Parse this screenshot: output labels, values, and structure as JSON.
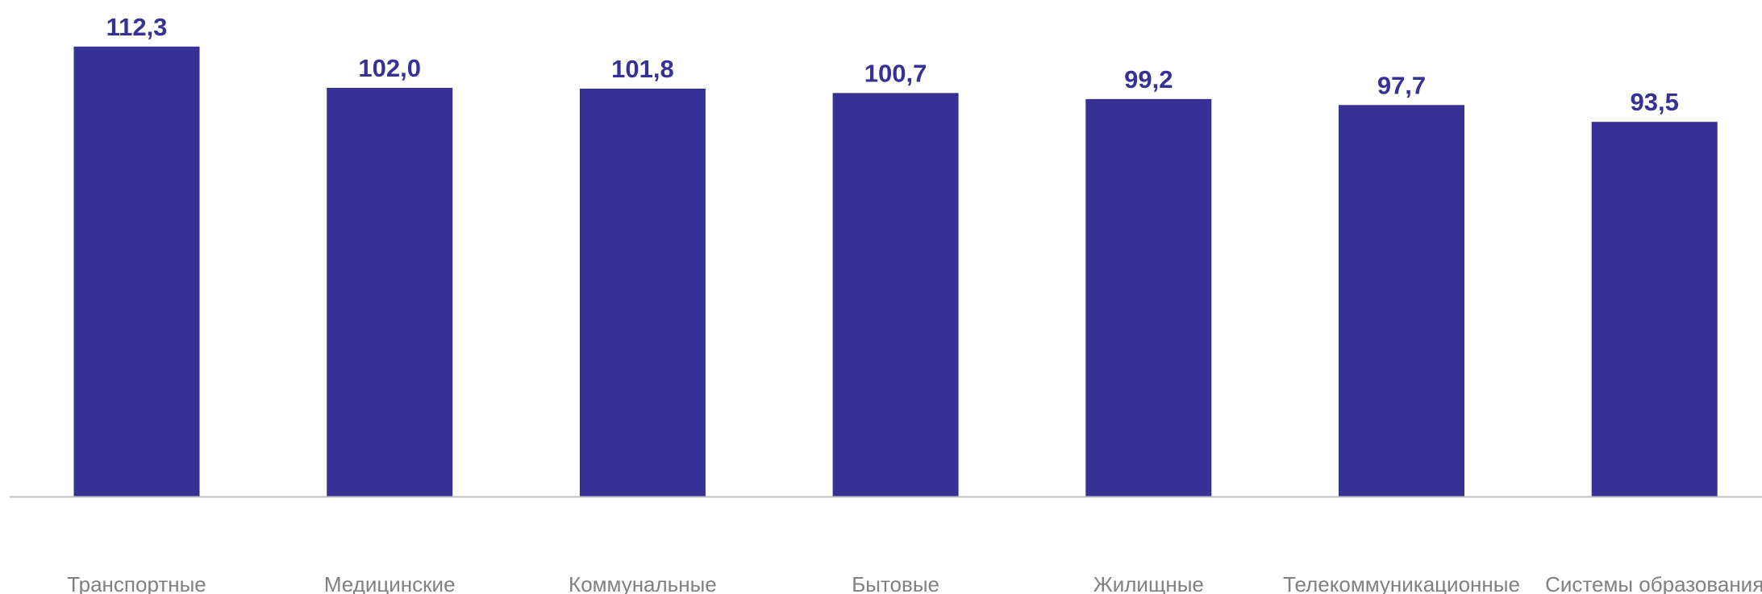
{
  "chart_data": {
    "type": "bar",
    "categories": [
      "Транспортные",
      "Медицинские",
      "Коммунальные",
      "Бытовые",
      "Жилищные",
      "Телекоммуникационные",
      "Системы образования"
    ],
    "values": [
      112.3,
      102.0,
      101.8,
      100.7,
      99.2,
      97.7,
      93.5
    ],
    "value_labels": [
      "112,3",
      "102,0",
      "101,8",
      "100,7",
      "99,2",
      "97,7",
      "93,5"
    ],
    "ylim": [
      0,
      115
    ],
    "grid": false,
    "legend": "none",
    "colors": {
      "bar": "#363194",
      "value_label": "#363194",
      "category_label": "#808080",
      "axis": "#bfbfbf"
    }
  }
}
